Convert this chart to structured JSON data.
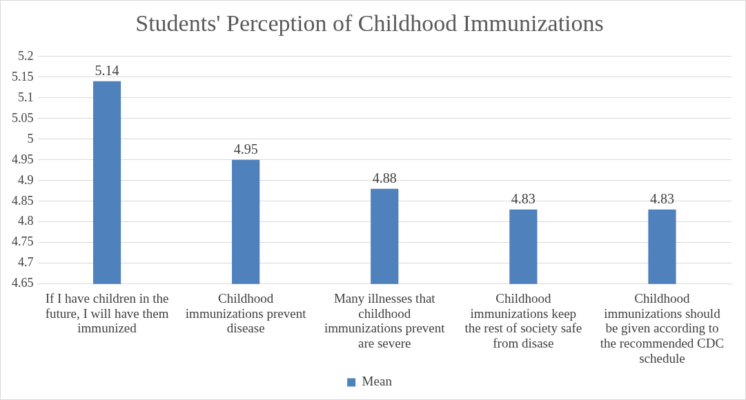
{
  "chart_data": {
    "type": "bar",
    "title": "Students' Perception of Childhood Immunizations",
    "categories": [
      "If I have children in the future, I will have them immunized",
      "Childhood immunizations prevent disease",
      "Many illnesses that childhood immunizations prevent are severe",
      "Childhood immunizations keep the rest of society safe from disase",
      "Childhood immunizations should be given according to the recommended CDC schedule"
    ],
    "series": [
      {
        "name": "Mean",
        "color": "#4f81bd",
        "values": [
          5.14,
          4.95,
          4.88,
          4.83,
          4.83
        ]
      }
    ],
    "ylim": [
      4.65,
      5.2
    ],
    "yticks": [
      4.65,
      4.7,
      4.75,
      4.8,
      4.85,
      4.9,
      4.95,
      5,
      5.05,
      5.1,
      5.15,
      5.2
    ],
    "grid": "y",
    "legend": "bottom",
    "data_labels": true
  }
}
